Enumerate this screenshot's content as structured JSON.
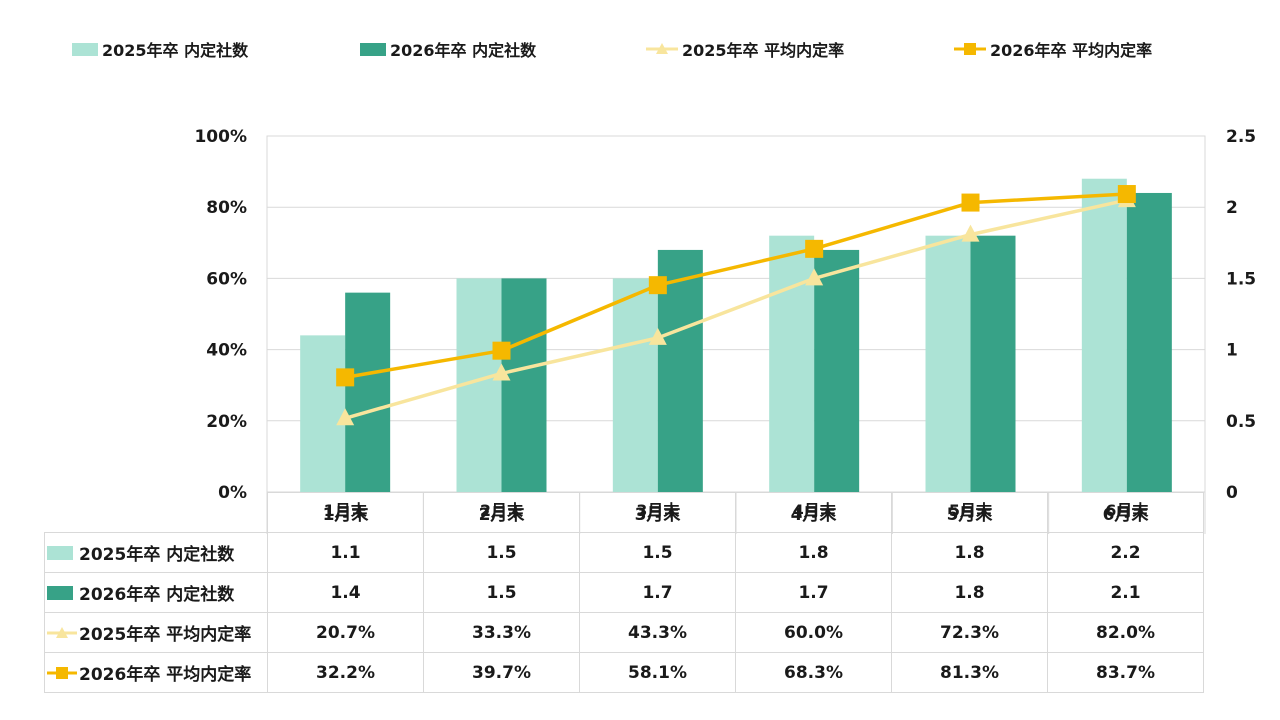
{
  "legend": [
    {
      "label": "2025年卒 内定社数",
      "kind": "bar",
      "color": "#ace3d5"
    },
    {
      "label": "2026年卒 内定社数",
      "kind": "bar",
      "color": "#37a287"
    },
    {
      "label": "2025年卒 平均内定率",
      "kind": "line-triangle",
      "color": "#f8e59d"
    },
    {
      "label": "2026年卒 平均内定率",
      "kind": "line-square",
      "color": "#f5b800"
    }
  ],
  "chart_data": {
    "type": "bar",
    "categories": [
      "1月末",
      "2月末",
      "3月末",
      "4月末",
      "5月末",
      "6月末"
    ],
    "series": [
      {
        "name": "2025年卒 内定社数",
        "type": "bar",
        "axis": "right",
        "color": "#ace3d5",
        "values": [
          1.1,
          1.5,
          1.5,
          1.8,
          1.8,
          2.2
        ]
      },
      {
        "name": "2026年卒 内定社数",
        "type": "bar",
        "axis": "right",
        "color": "#37a287",
        "values": [
          1.4,
          1.5,
          1.7,
          1.7,
          1.8,
          2.1
        ]
      },
      {
        "name": "2025年卒 平均内定率",
        "type": "line",
        "marker": "triangle",
        "axis": "left",
        "color": "#f8e59d",
        "values": [
          20.7,
          33.3,
          43.3,
          60.0,
          72.3,
          82.0
        ]
      },
      {
        "name": "2026年卒 平均内定率",
        "type": "line",
        "marker": "square",
        "axis": "left",
        "color": "#f5b800",
        "values": [
          32.2,
          39.7,
          58.1,
          68.3,
          81.3,
          83.7
        ]
      }
    ],
    "y_left": {
      "min": 0,
      "max": 100,
      "ticks": [
        "0%",
        "20%",
        "40%",
        "60%",
        "80%",
        "100%"
      ]
    },
    "y_right": {
      "min": 0,
      "max": 2.5,
      "ticks": [
        "0",
        "0.5",
        "1",
        "1.5",
        "2",
        "2.5"
      ]
    },
    "grid": true,
    "legend_position": "top"
  },
  "table": {
    "rows": [
      {
        "label": "2025年卒 内定社数",
        "marker": "box",
        "color": "#ace3d5",
        "values": [
          "1.1",
          "1.5",
          "1.5",
          "1.8",
          "1.8",
          "2.2"
        ]
      },
      {
        "label": "2026年卒 内定社数",
        "marker": "box",
        "color": "#37a287",
        "values": [
          "1.4",
          "1.5",
          "1.7",
          "1.7",
          "1.8",
          "2.1"
        ]
      },
      {
        "label": "2025年卒 平均内定率",
        "marker": "line-triangle",
        "color": "#f8e59d",
        "values": [
          "20.7%",
          "33.3%",
          "43.3%",
          "60.0%",
          "72.3%",
          "82.0%"
        ]
      },
      {
        "label": "2026年卒 平均内定率",
        "marker": "line-square",
        "color": "#f5b800",
        "values": [
          "32.2%",
          "39.7%",
          "58.1%",
          "68.3%",
          "81.3%",
          "83.7%"
        ]
      }
    ]
  }
}
